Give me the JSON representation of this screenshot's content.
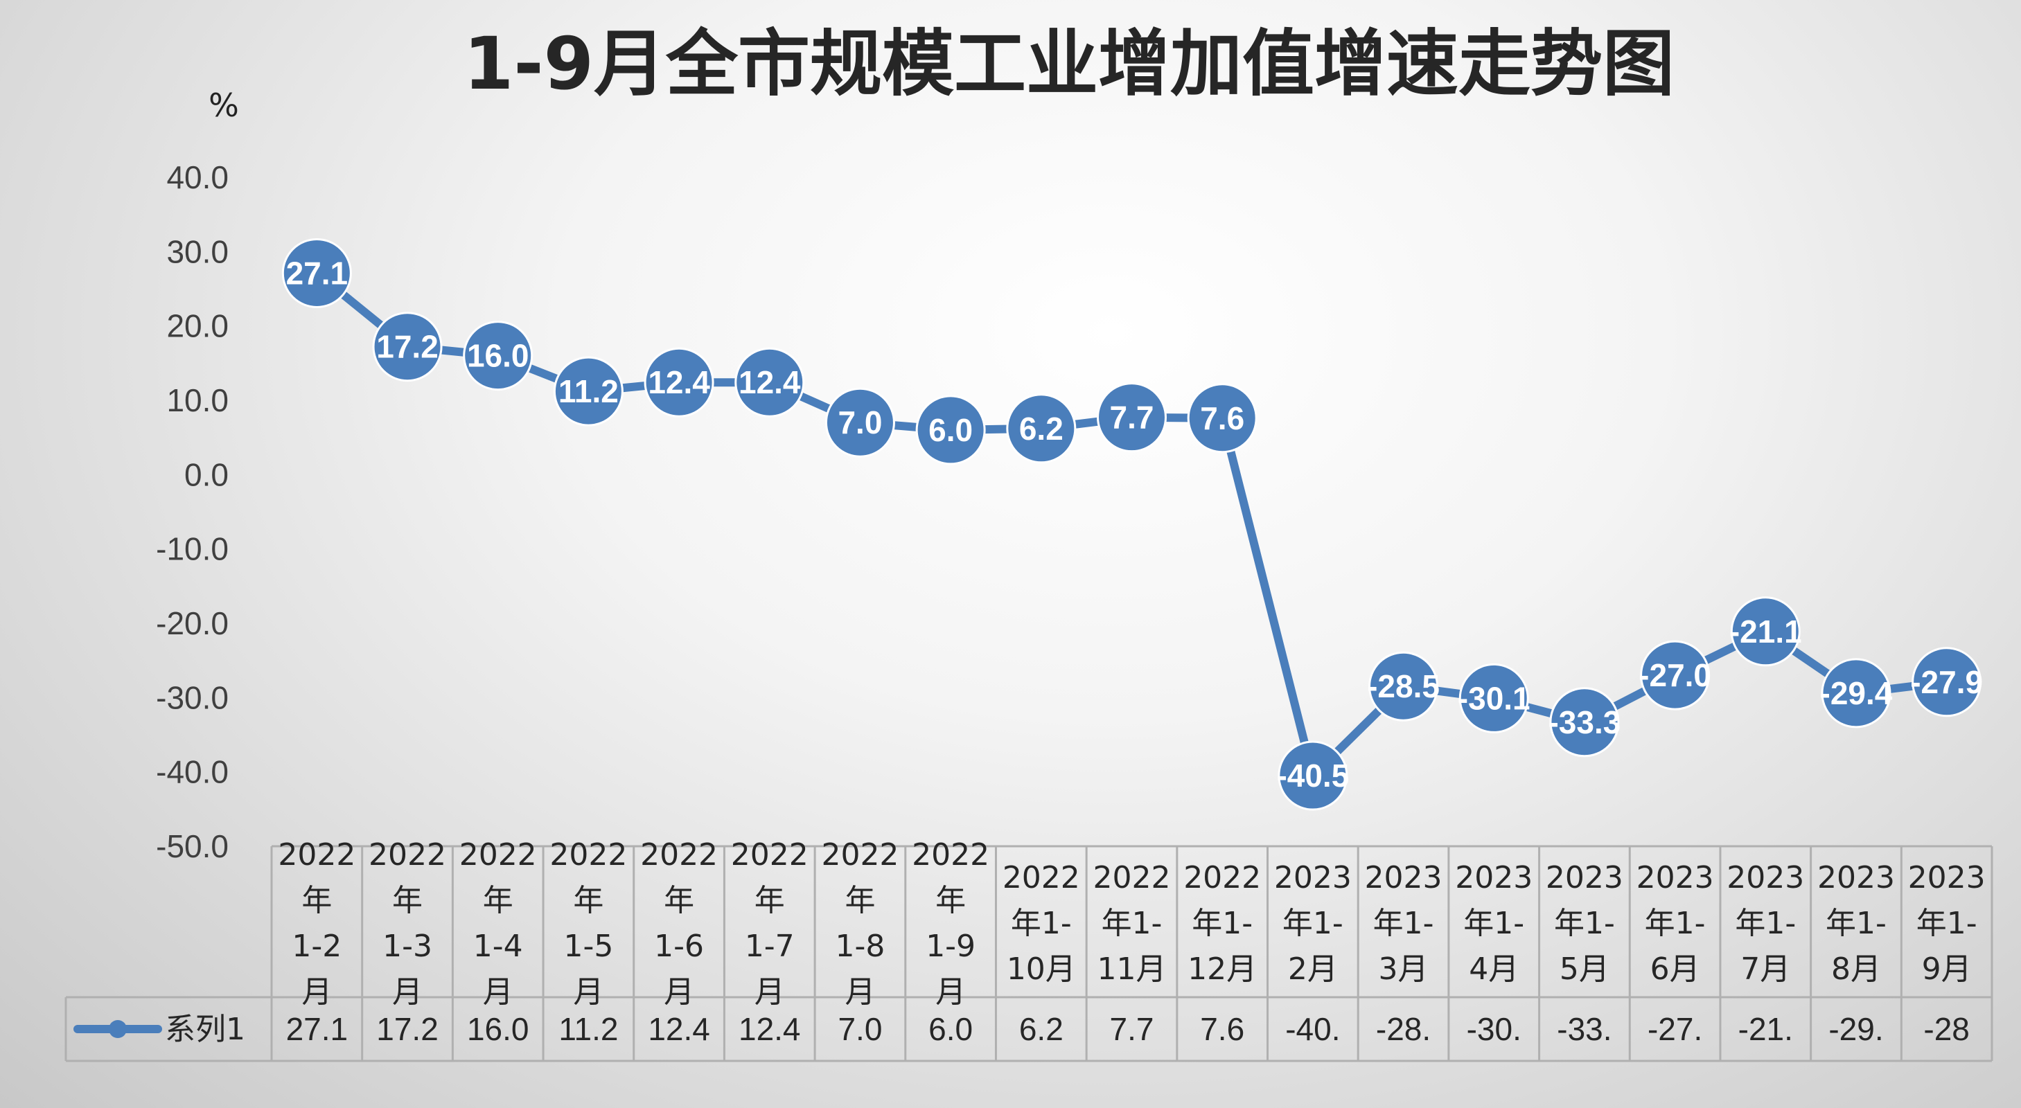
{
  "chart_data": {
    "type": "line",
    "title": "1-9月全市规模工业增加值增速走势图",
    "ylabel": "%",
    "ylim": [
      -50,
      40
    ],
    "yticks": [
      "40.0",
      "30.0",
      "20.0",
      "10.0",
      "0.0",
      "-10.0",
      "-20.0",
      "-30.0",
      "-40.0",
      "-50.0"
    ],
    "categories": [
      [
        "2022",
        "年",
        "1-2",
        "月"
      ],
      [
        "2022",
        "年",
        "1-3",
        "月"
      ],
      [
        "2022",
        "年",
        "1-4",
        "月"
      ],
      [
        "2022",
        "年",
        "1-5",
        "月"
      ],
      [
        "2022",
        "年",
        "1-6",
        "月"
      ],
      [
        "2022",
        "年",
        "1-7",
        "月"
      ],
      [
        "2022",
        "年",
        "1-8",
        "月"
      ],
      [
        "2022",
        "年",
        "1-9",
        "月"
      ],
      [
        "2022",
        "年1-",
        "10月"
      ],
      [
        "2022",
        "年1-",
        "11月"
      ],
      [
        "2022",
        "年1-",
        "12月"
      ],
      [
        "2023",
        "年1-",
        "2月"
      ],
      [
        "2023",
        "年1-",
        "3月"
      ],
      [
        "2023",
        "年1-",
        "4月"
      ],
      [
        "2023",
        "年1-",
        "5月"
      ],
      [
        "2023",
        "年1-",
        "6月"
      ],
      [
        "2023",
        "年1-",
        "7月"
      ],
      [
        "2023",
        "年1-",
        "8月"
      ],
      [
        "2023",
        "年1-",
        "9月"
      ]
    ],
    "series": [
      {
        "name": "系列1",
        "color": "#4a7ebb",
        "values": [
          27.1,
          17.2,
          16.0,
          11.2,
          12.4,
          12.4,
          7.0,
          6.0,
          6.2,
          7.7,
          7.6,
          -40.5,
          -28.5,
          -30.1,
          -33.3,
          -27.0,
          -21.1,
          -29.4,
          -27.9
        ],
        "data_labels": [
          "27.1",
          "17.2",
          "16.0",
          "11.2",
          "12.4",
          "12.4",
          "7.0",
          "6.0",
          "6.2",
          "7.7",
          "7.6",
          "-40.5",
          "-28.5",
          "-30.1",
          "-33.3",
          "-27.0",
          "-21.1",
          "-29.4",
          "-27.9"
        ],
        "table_values": [
          "27.1",
          "17.2",
          "16.0",
          "11.2",
          "12.4",
          "12.4",
          "7.0",
          "6.0",
          "6.2",
          "7.7",
          "7.6",
          "-40.",
          "-28.",
          "-30.",
          "-33.",
          "-27.",
          "-21.",
          "-29.",
          "-28"
        ]
      }
    ],
    "legend": "data-table",
    "grid": false
  }
}
